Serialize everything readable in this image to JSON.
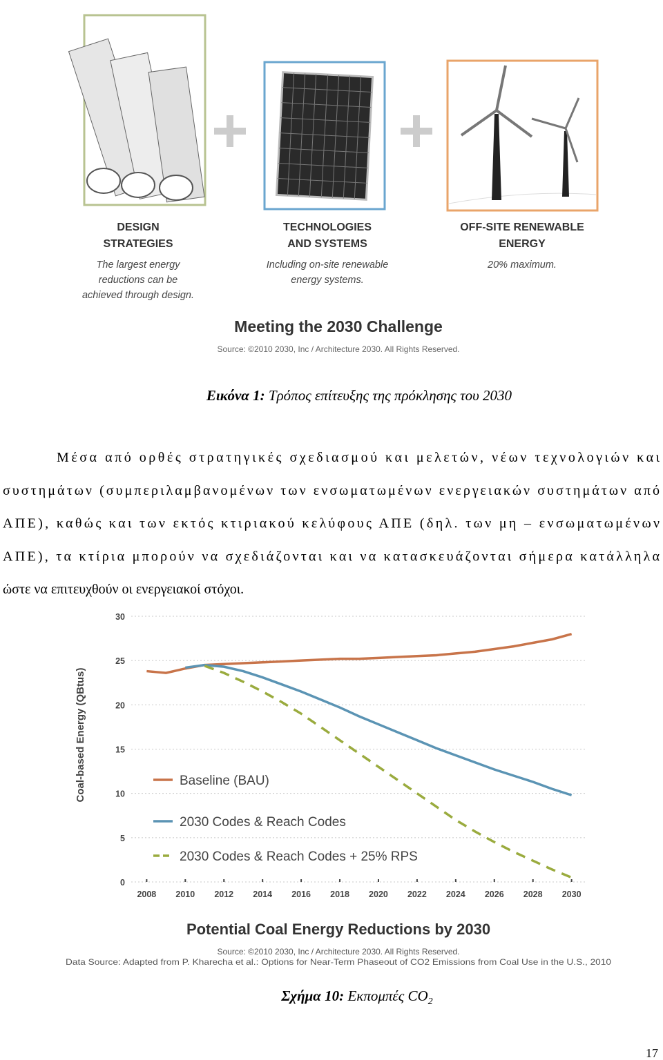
{
  "figure1": {
    "panels": [
      {
        "title": [
          "DESIGN",
          "STRATEGIES"
        ],
        "text": [
          "The largest energy",
          "reductions can be",
          "achieved through design."
        ]
      },
      {
        "title": [
          "TECHNOLOGIES",
          "AND SYSTEMS"
        ],
        "text": [
          "Including on-site renewable",
          "energy systems."
        ]
      },
      {
        "title": [
          "OFF-SITE RENEWABLE",
          "ENERGY"
        ],
        "text": [
          "20% maximum."
        ]
      }
    ],
    "title": "Meeting the 2030 Challenge",
    "source": "Source: ©2010 2030, Inc / Architecture 2030. All Rights Reserved."
  },
  "caption1": {
    "label": "Εικόνα 1:",
    "text": "Τρόπος επίτευξης της πρόκλησης του 2030"
  },
  "paragraph": [
    "Μέσα από ορθές στρατηγικές σχεδιασμού και μελετών, νέων τεχνολογιών και",
    "συστημάτων (συμπεριλαμβανομένων των ενσωματωμένων ενεργειακών συστημάτων από",
    "ΑΠΕ), καθώς και των εκτός κτιριακού κελύφους ΑΠΕ (δηλ. των μη – ενσωματωμένων",
    "ΑΠΕ), τα κτίρια μπορούν να σχεδιάζονται και να κατασκευάζονται σήμερα κατάλληλα",
    "ώστε να επιτευχθούν οι ενεργειακοί στόχοι."
  ],
  "chart_data": {
    "type": "line",
    "title": "Potential Coal Energy Reductions by 2030",
    "sources": [
      "Source: ©2010 2030, Inc / Architecture 2030. All Rights Reserved.",
      "Data Source: Adapted from P. Kharecha et al.: Options for Near-Term Phaseout of CO2 Emissions from Coal Use in the U.S., 2010"
    ],
    "y_label": "Coal-based Energy (QBtus)",
    "x": [
      2008,
      2009,
      2010,
      2011,
      2012,
      2013,
      2014,
      2015,
      2016,
      2017,
      2018,
      2019,
      2020,
      2021,
      2022,
      2023,
      2024,
      2025,
      2026,
      2027,
      2028,
      2029,
      2030
    ],
    "series": [
      {
        "name": "Baseline (BAU)",
        "color": "#c8744a",
        "style": "solid",
        "values": [
          23.8,
          23.6,
          24.1,
          24.5,
          24.6,
          24.7,
          24.8,
          24.9,
          25.0,
          25.1,
          25.2,
          25.2,
          25.3,
          25.4,
          25.5,
          25.6,
          25.8,
          26.0,
          26.3,
          26.6,
          27.0,
          27.4,
          28.0
        ]
      },
      {
        "name": "2030 Codes & Reach Codes",
        "color": "#5b94b4",
        "style": "solid",
        "values": [
          null,
          null,
          24.2,
          24.5,
          24.3,
          23.8,
          23.1,
          22.3,
          21.5,
          20.6,
          19.7,
          18.7,
          17.8,
          16.9,
          16.0,
          15.1,
          14.3,
          13.5,
          12.7,
          12.0,
          11.3,
          10.5,
          9.8
        ]
      },
      {
        "name": "2030 Codes & Reach Codes + 25% RPS",
        "color": "#9aab3e",
        "style": "dashed",
        "values": [
          null,
          null,
          null,
          24.4,
          23.6,
          22.6,
          21.5,
          20.3,
          19.0,
          17.5,
          16.0,
          14.5,
          13.0,
          11.5,
          10.0,
          8.5,
          7.0,
          5.7,
          4.5,
          3.4,
          2.4,
          1.4,
          0.5
        ]
      }
    ],
    "xlim": [
      2007.2,
      2030.8
    ],
    "xticks": [
      2008,
      2010,
      2012,
      2014,
      2016,
      2018,
      2020,
      2022,
      2024,
      2026,
      2028,
      2030
    ],
    "ylim": [
      0,
      30
    ],
    "yticks": [
      0,
      5,
      10,
      15,
      20,
      25,
      30
    ],
    "grid": true,
    "legend": "center-left"
  },
  "caption2": {
    "label": "Σχήμα 10:",
    "text": "Εκπομπές CO",
    "subscript": "2"
  },
  "page_number": "17"
}
